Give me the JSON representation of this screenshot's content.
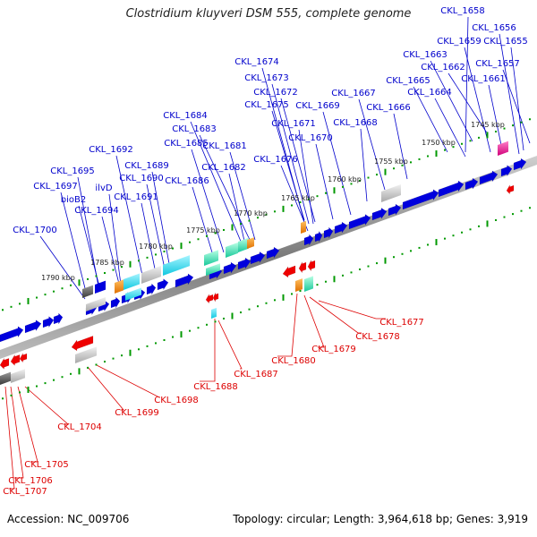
{
  "title": "Clostridium kluyveri DSM 555, complete genome",
  "footer": {
    "accession": "Accession: NC_009706",
    "summary": "Topology: circular; Length: 3,964,618 bp; Genes: 3,919"
  },
  "colors": {
    "forward_label": "#0000cc",
    "reverse_label": "#dd0000",
    "forward_gene": "#0000dd",
    "reverse_gene": "#ee0000",
    "tick": "#009900",
    "backbone": "#888888"
  },
  "scale_labels": [
    "1745 kbp",
    "1750 kbp",
    "1755 kbp",
    "1760 kbp",
    "1765 kbp",
    "1770 kbp",
    "1775 kbp",
    "1780 kbp",
    "1785 kbp",
    "1790 kbp"
  ],
  "forward_gene_labels": [
    "CKL_1658",
    "CKL_1656",
    "CKL_1659",
    "CKL_1655",
    "CKL_1663",
    "CKL_1662",
    "CKL_1657",
    "CKL_1674",
    "CKL_1665",
    "CKL_1661",
    "CKL_1673",
    "CKL_1664",
    "CKL_1672",
    "CKL_1667",
    "CKL_1675",
    "CKL_1669",
    "CKL_1666",
    "CKL_1684",
    "CKL_1671",
    "CKL_1668",
    "CKL_1683",
    "CKL_1670",
    "CKL_1685",
    "CKL_1681",
    "CKL_1692",
    "CKL_1676",
    "CKL_1689",
    "CKL_1682",
    "CKL_1695",
    "CKL_1690",
    "CKL_1686",
    "CKL_1697",
    "ilvD",
    "bioB2",
    "CKL_1691",
    "CKL_1694",
    "CKL_1700"
  ],
  "reverse_gene_labels": [
    "CKL_1677",
    "CKL_1678",
    "CKL_1679",
    "CKL_1680",
    "CKL_1687",
    "CKL_1688",
    "CKL_1698",
    "CKL_1699",
    "CKL_1704",
    "CKL_1705",
    "CKL_1706",
    "CKL_1707"
  ]
}
